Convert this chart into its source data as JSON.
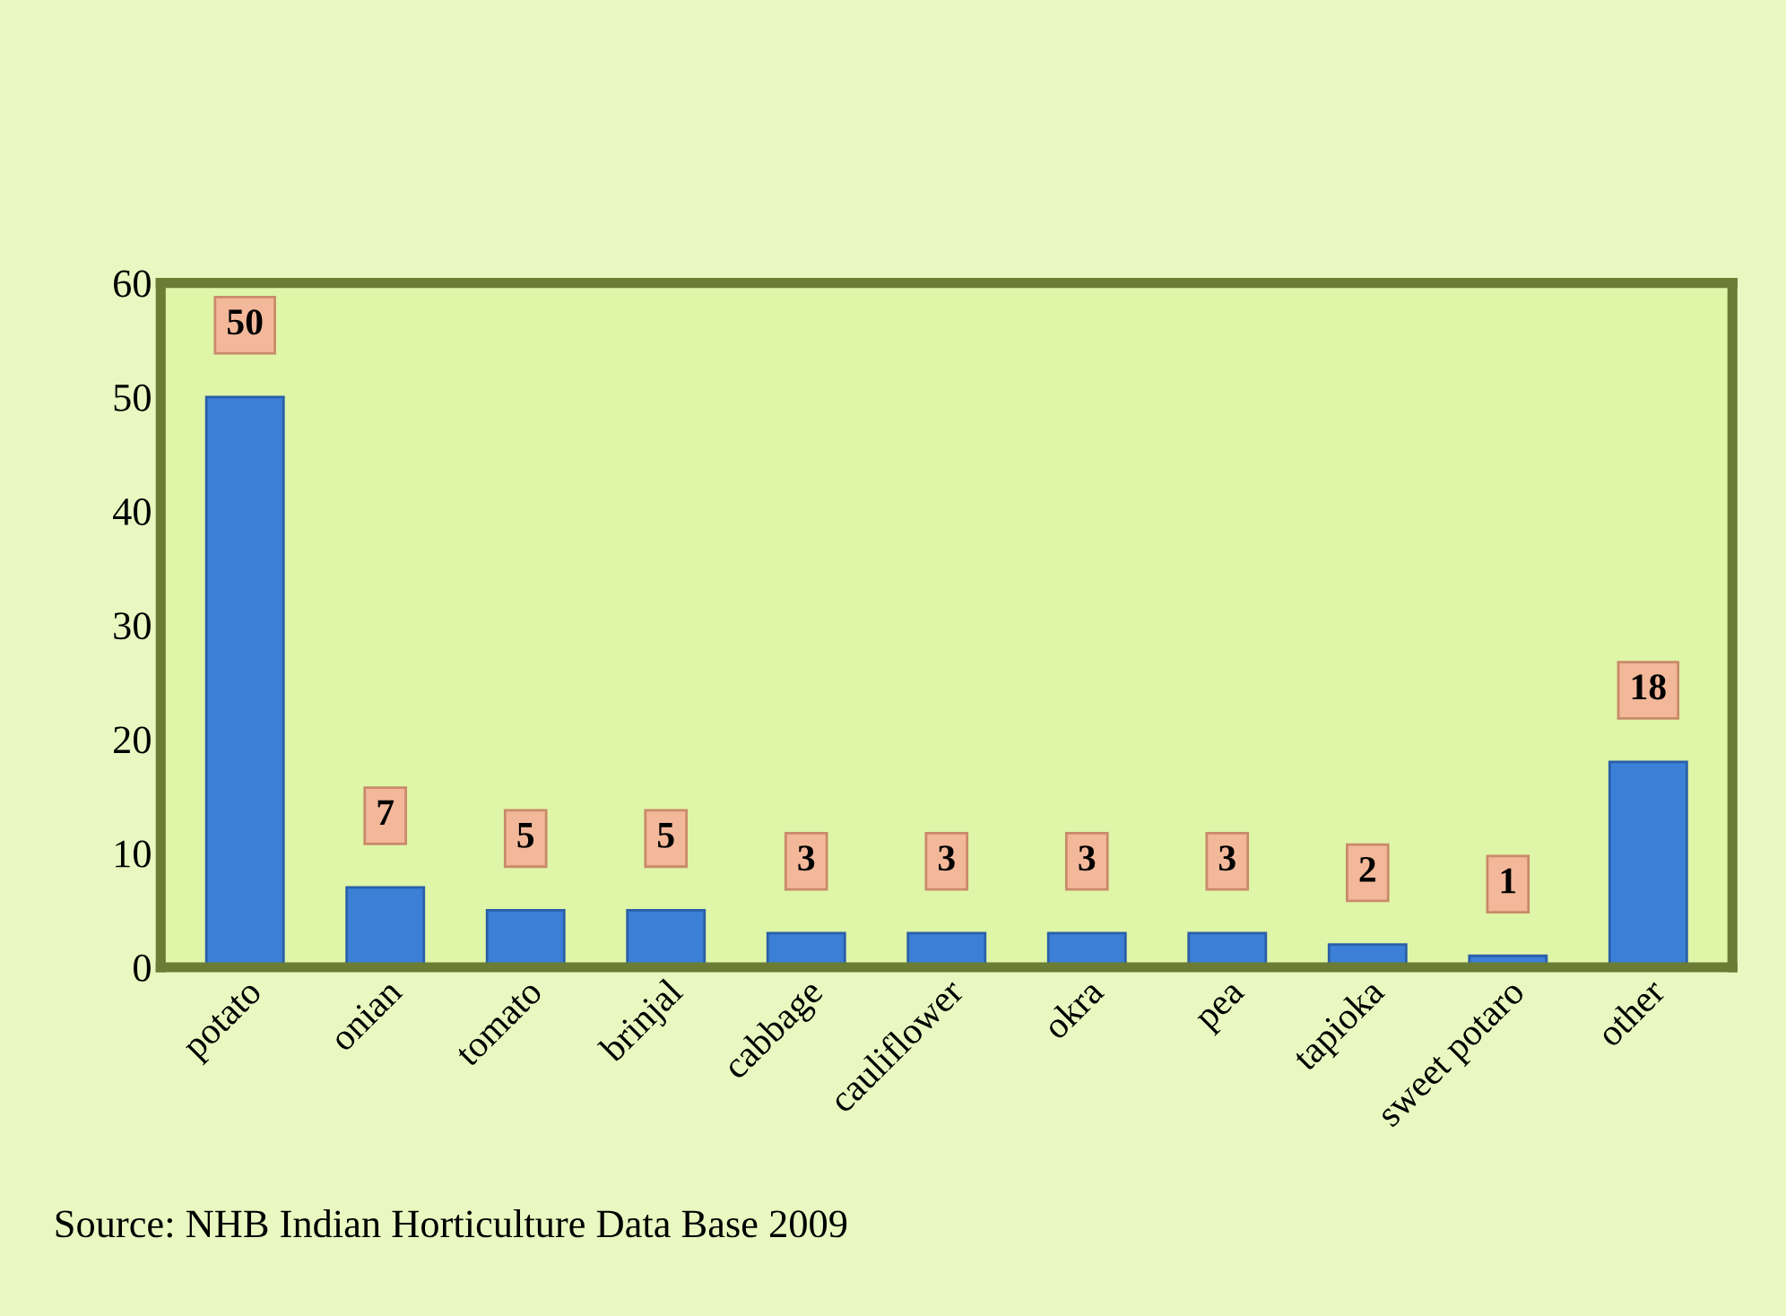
{
  "chart_data": {
    "type": "bar",
    "categories": [
      "potato",
      "onian",
      "tomato",
      "brinjal",
      "cabbage",
      "cauliflower",
      "okra",
      "pea",
      "tapioka",
      "sweet potaro",
      "other"
    ],
    "values": [
      50,
      7,
      5,
      5,
      3,
      3,
      3,
      3,
      2,
      1,
      18
    ],
    "color": "#3b7fd6",
    "ylim": [
      0,
      60
    ],
    "yticks": [
      0,
      10,
      20,
      30,
      40,
      50,
      60
    ],
    "data_labels": true,
    "grid": false,
    "legend": false,
    "annotations": [
      "Source: NHB Indian Horticulture Data Base 2009"
    ]
  }
}
